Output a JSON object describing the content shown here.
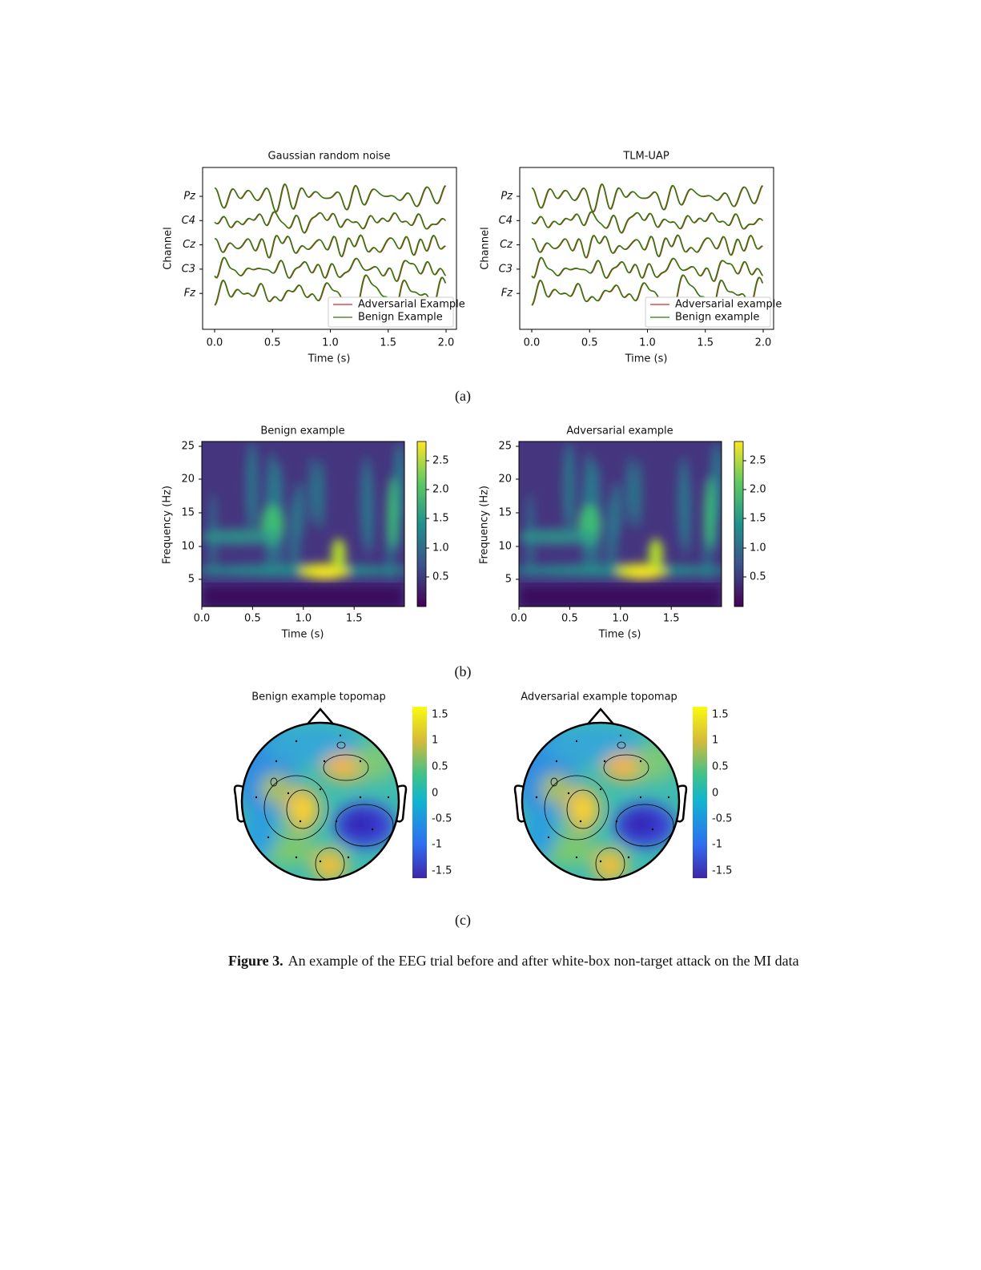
{
  "figure": {
    "panel_a": {
      "label": "(a)",
      "plots": [
        {
          "title": "Gaussian random noise",
          "ylabel": "Channel",
          "xlabel": "Time (s)",
          "channels": [
            "Pz",
            "C4",
            "Cz",
            "C3",
            "Fz"
          ],
          "xticks": [
            "0.0",
            "0.5",
            "1.0",
            "1.5",
            "2.0"
          ],
          "legend": [
            "Adversarial Example",
            "Benign Example"
          ]
        },
        {
          "title": "TLM-UAP",
          "ylabel": "Channel",
          "xlabel": "Time (s)",
          "channels": [
            "Pz",
            "C4",
            "Cz",
            "C3",
            "Fz"
          ],
          "xticks": [
            "0.0",
            "0.5",
            "1.0",
            "1.5",
            "2.0"
          ],
          "legend": [
            "Adversarial example",
            "Benign example"
          ]
        }
      ]
    },
    "panel_b": {
      "label": "(b)",
      "plots": [
        {
          "title": "Benign example",
          "ylabel": "Frequency (Hz)",
          "xlabel": "Time (s)",
          "yticks": [
            "25",
            "20",
            "15",
            "10",
            "5"
          ],
          "xticks": [
            "0.0",
            "0.5",
            "1.0",
            "1.5"
          ],
          "colorbar_ticks": [
            "2.5",
            "2.0",
            "1.5",
            "1.0",
            "0.5"
          ]
        },
        {
          "title": "Adversarial example",
          "ylabel": "Frequency (Hz)",
          "xlabel": "Time (s)",
          "yticks": [
            "25",
            "20",
            "15",
            "10",
            "5"
          ],
          "xticks": [
            "0.0",
            "0.5",
            "1.0",
            "1.5"
          ],
          "colorbar_ticks": [
            "2.5",
            "2.0",
            "1.5",
            "1.0",
            "0.5"
          ]
        }
      ]
    },
    "panel_c": {
      "label": "(c)",
      "plots": [
        {
          "title": "Benign example topomap",
          "colorbar_ticks": [
            "1.5",
            "1",
            "0.5",
            "0",
            "-0.5",
            "-1",
            "-1.5"
          ]
        },
        {
          "title": "Adversarial example topomap",
          "colorbar_ticks": [
            "1.5",
            "1",
            "0.5",
            "0",
            "-0.5",
            "-1",
            "-1.5"
          ]
        }
      ]
    },
    "caption": {
      "label": "Figure 3.",
      "text": "An example of the EEG trial before and after white-box non-target attack on the MI data"
    }
  }
}
